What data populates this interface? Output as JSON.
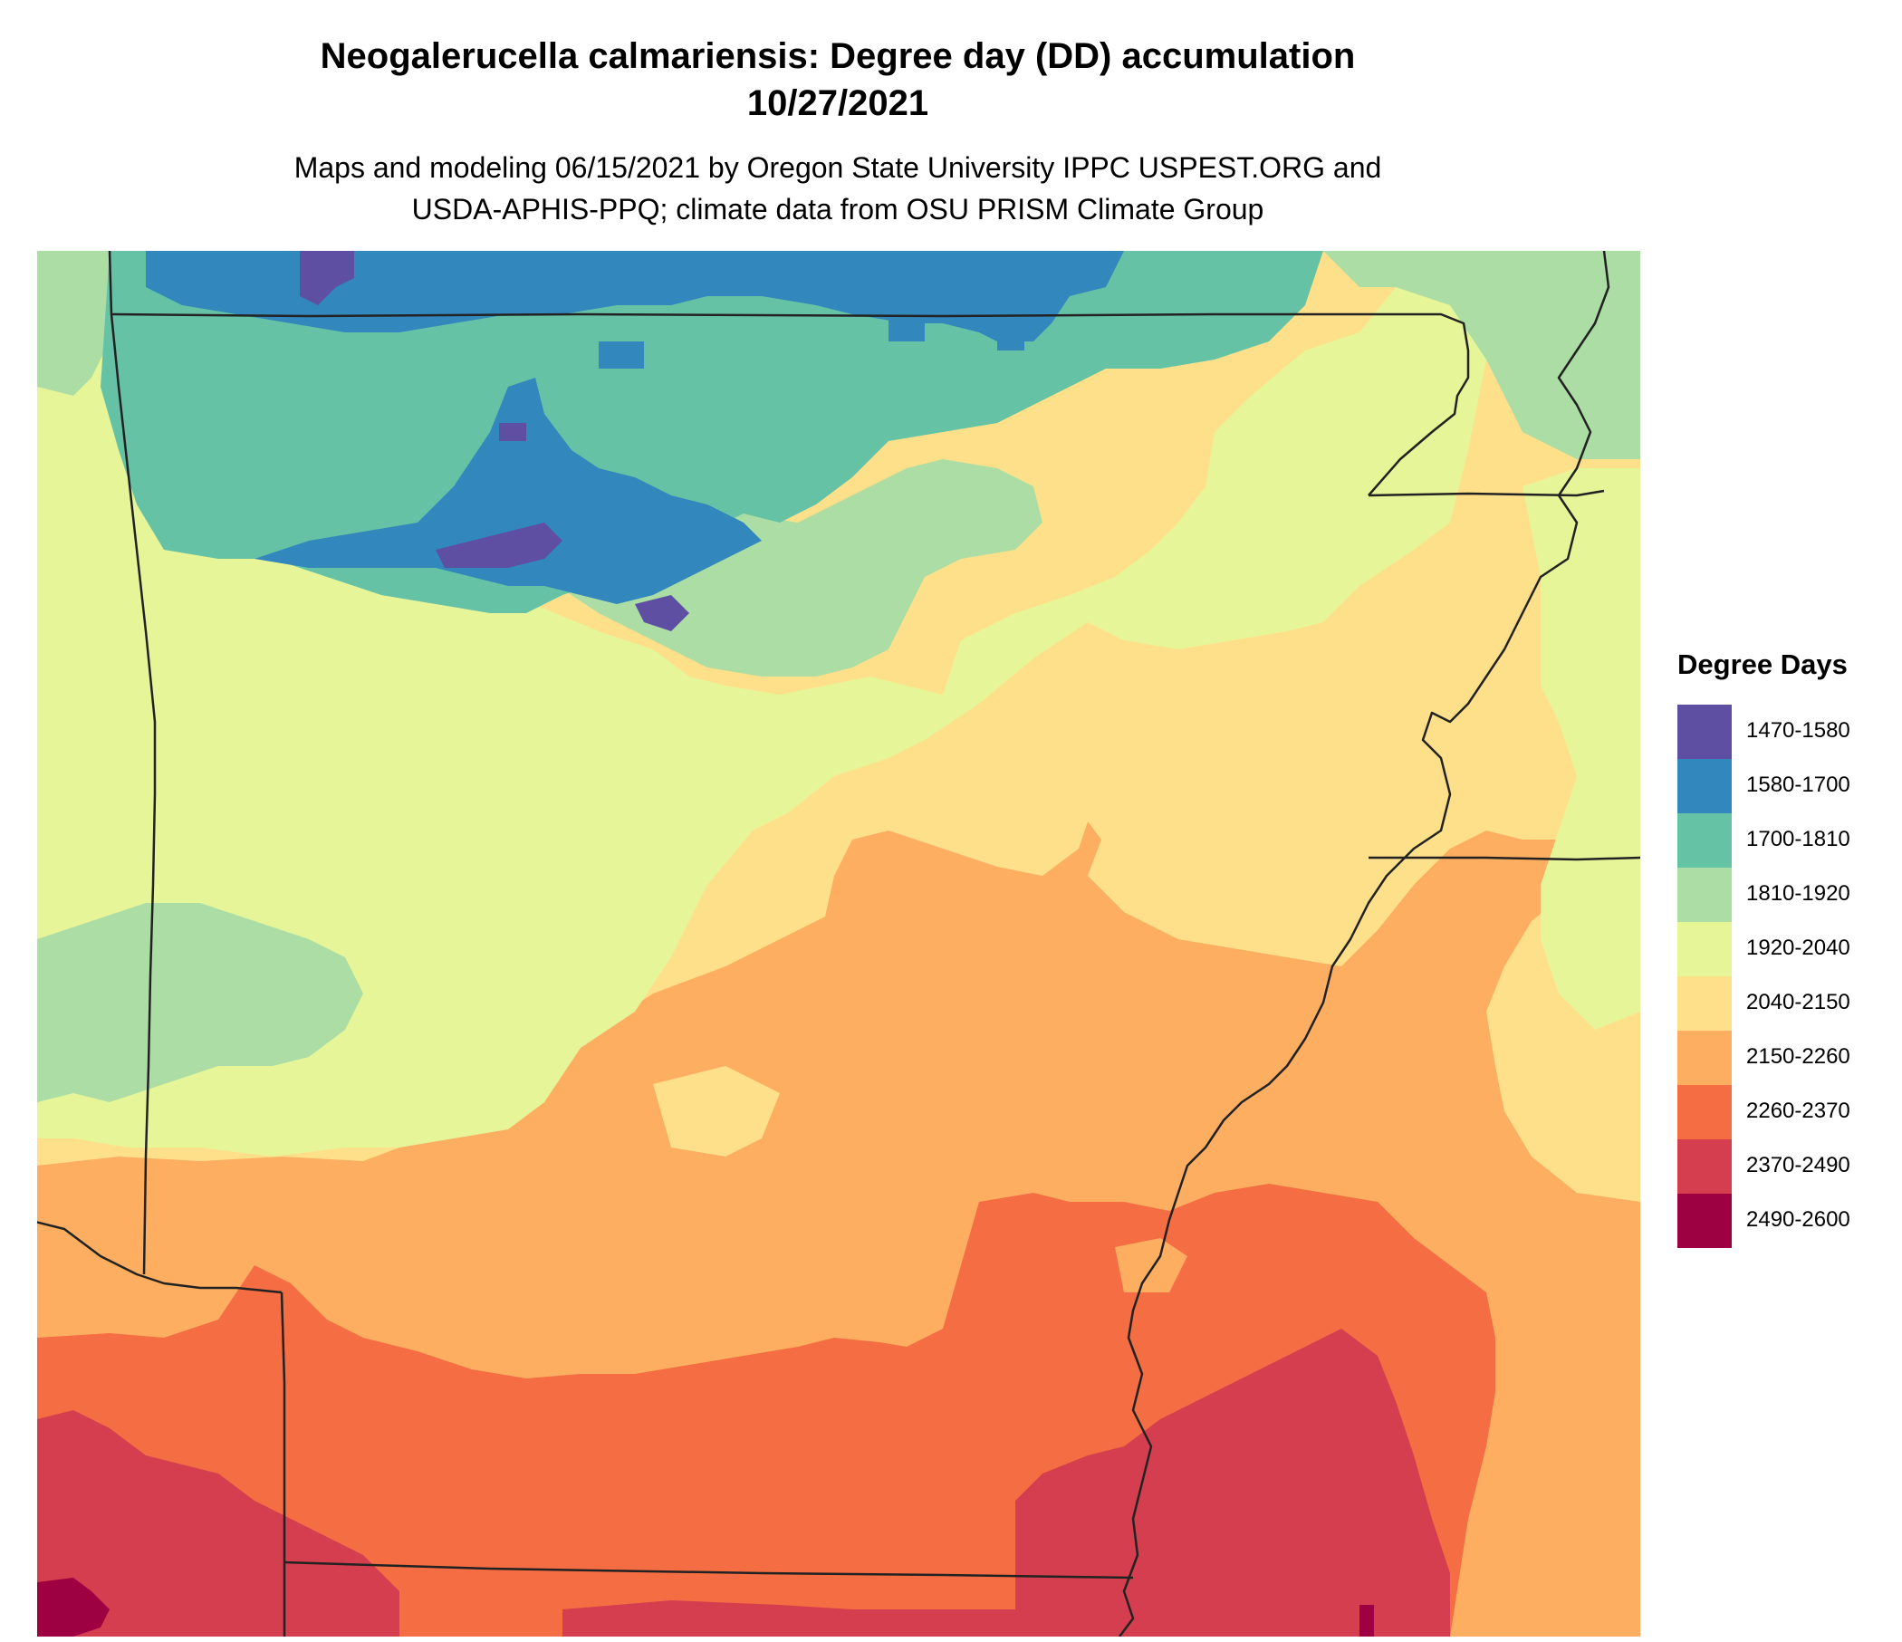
{
  "title": {
    "line1": "Neogalerucella calmariensis: Degree day (DD) accumulation",
    "line2": "10/27/2021"
  },
  "subtitle": {
    "line1": "Maps and modeling 06/15/2021 by Oregon State University IPPC USPEST.ORG and",
    "line2": "USDA-APHIS-PPQ; climate data from OSU PRISM Climate Group"
  },
  "legend": {
    "title": "Degree Days",
    "items": [
      {
        "label": "1470-1580",
        "color": "#5E4FA2"
      },
      {
        "label": "1580-1700",
        "color": "#3288BD"
      },
      {
        "label": "1700-1810",
        "color": "#66C2A5"
      },
      {
        "label": "1810-1920",
        "color": "#ABDDA4"
      },
      {
        "label": "1920-2040",
        "color": "#E6F598"
      },
      {
        "label": "2040-2150",
        "color": "#FEE08B"
      },
      {
        "label": "2150-2260",
        "color": "#FDAE61"
      },
      {
        "label": "2260-2370",
        "color": "#F46D43"
      },
      {
        "label": "2370-2490",
        "color": "#D53E4F"
      },
      {
        "label": "2490-2600",
        "color": "#9E0142"
      }
    ]
  }
}
